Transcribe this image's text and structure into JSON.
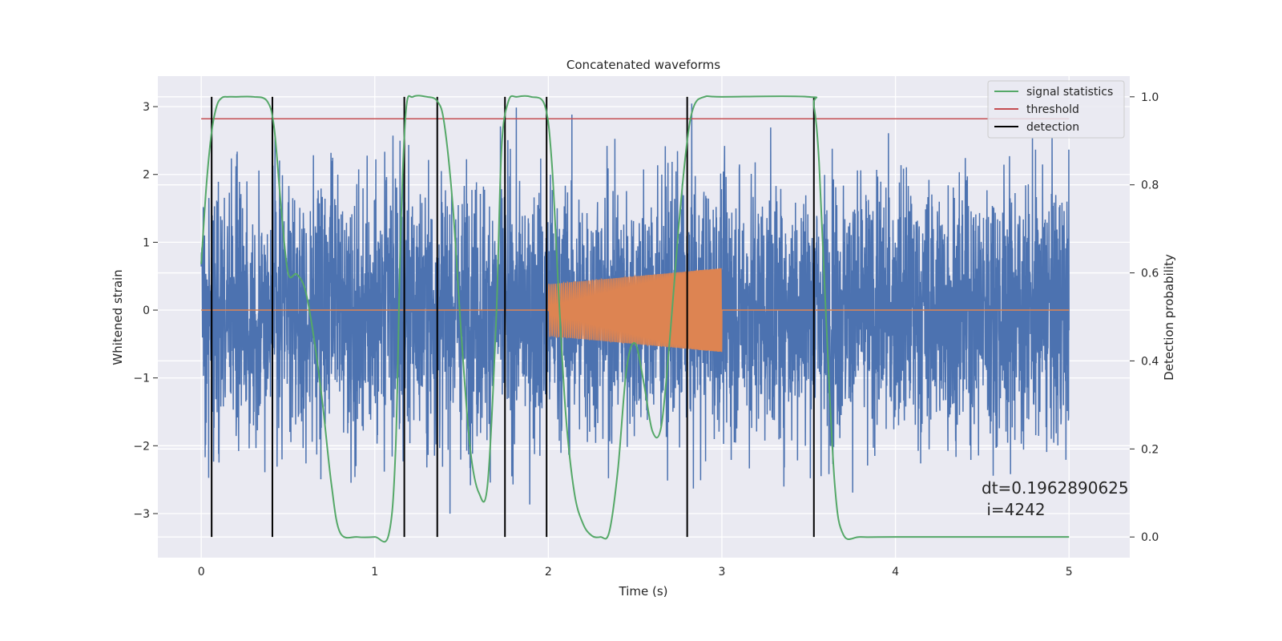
{
  "chart_data": {
    "type": "line",
    "title": "Concatenated waveforms",
    "xlabel": "Time (s)",
    "ylabel": "Whitened strain",
    "ylabel_right": "Detection probability",
    "xlim": [
      -0.25,
      5.35
    ],
    "ylim": [
      -3.65,
      3.45
    ],
    "ylim_right": [
      -0.047,
      1.047
    ],
    "xticks": [
      0,
      1,
      2,
      3,
      4,
      5
    ],
    "yticks": [
      -3,
      -2,
      -1,
      0,
      1,
      2,
      3
    ],
    "yticks_right": [
      0.0,
      0.2,
      0.4,
      0.6,
      0.8,
      1.0
    ],
    "xtick_labels": [
      "0",
      "1",
      "2",
      "3",
      "4",
      "5"
    ],
    "ytick_labels": [
      "−3",
      "−2",
      "−1",
      "0",
      "1",
      "2",
      "3"
    ],
    "ytick_right_labels": [
      "0.0",
      "0.2",
      "0.4",
      "0.6",
      "0.8",
      "1.0"
    ],
    "series": [
      {
        "name": "whitened strain noise",
        "axis": "left",
        "color": "#4c72b0",
        "kind": "noise",
        "x_range": [
          0,
          5
        ],
        "std": 0.95
      },
      {
        "name": "injected waveform",
        "axis": "left",
        "color": "#dd8452",
        "kind": "chirp",
        "x_range": [
          0,
          5
        ],
        "chirp_range": [
          2.0,
          3.0
        ],
        "amp_start": 0.38,
        "amp_end": 0.62
      },
      {
        "name": "signal statistics",
        "axis": "right",
        "color": "#55a868",
        "x": [
          0.0,
          0.03,
          0.06,
          0.09,
          0.12,
          0.15,
          0.2,
          0.3,
          0.38,
          0.42,
          0.46,
          0.5,
          0.55,
          0.6,
          0.65,
          0.7,
          0.75,
          0.8,
          0.9,
          1.0,
          1.08,
          1.12,
          1.15,
          1.18,
          1.22,
          1.3,
          1.36,
          1.4,
          1.45,
          1.5,
          1.55,
          1.6,
          1.65,
          1.7,
          1.73,
          1.77,
          1.82,
          1.9,
          1.98,
          2.02,
          2.06,
          2.1,
          2.15,
          2.2,
          2.25,
          2.3,
          2.35,
          2.4,
          2.45,
          2.5,
          2.55,
          2.6,
          2.65,
          2.7,
          2.75,
          2.8,
          2.84,
          2.9,
          3.0,
          3.5,
          3.53,
          3.56,
          3.6,
          3.65,
          3.7,
          3.8,
          4.0,
          5.0
        ],
        "values": [
          0.62,
          0.8,
          0.92,
          0.98,
          0.998,
          1.0,
          1.0,
          1.0,
          0.99,
          0.93,
          0.75,
          0.6,
          0.597,
          0.56,
          0.45,
          0.3,
          0.12,
          0.01,
          0.0,
          0.0,
          0.005,
          0.2,
          0.7,
          0.97,
          1.0,
          1.0,
          0.99,
          0.94,
          0.75,
          0.45,
          0.2,
          0.1,
          0.12,
          0.5,
          0.88,
          0.99,
          1.0,
          1.0,
          0.98,
          0.85,
          0.55,
          0.28,
          0.1,
          0.03,
          0.003,
          0.0,
          0.01,
          0.15,
          0.38,
          0.44,
          0.35,
          0.24,
          0.25,
          0.45,
          0.7,
          0.9,
          0.98,
          1.0,
          1.0,
          1.0,
          0.98,
          0.85,
          0.5,
          0.12,
          0.005,
          0.0,
          0.0,
          0.0
        ]
      },
      {
        "name": "threshold",
        "axis": "right",
        "color": "#c44e52",
        "x": [
          0,
          5
        ],
        "values": [
          0.95,
          0.95
        ]
      }
    ],
    "detections": [
      0.06,
      0.41,
      1.17,
      1.36,
      1.75,
      1.99,
      2.8,
      3.53
    ],
    "detection_color": "#000000",
    "legend": {
      "position": "top-right",
      "entries": [
        {
          "label": "signal statistics",
          "color": "#55a868"
        },
        {
          "label": "threshold",
          "color": "#c44e52"
        },
        {
          "label": "detection",
          "color": "#000000"
        }
      ]
    },
    "annotation": {
      "line1": "dt=0.1962890625",
      "line2": " i=4242"
    },
    "grid": true,
    "background": "#eaeaf2"
  }
}
